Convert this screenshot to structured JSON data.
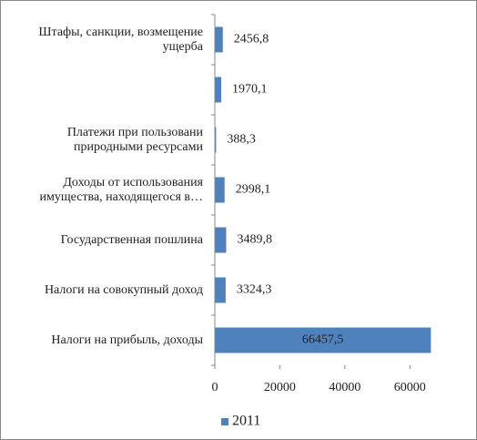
{
  "chart_data": {
    "type": "bar",
    "orientation": "horizontal",
    "categories": [
      "Штафы, санкции, возмещение ущерба",
      null,
      "Платежи при пользовани природными ресурсами",
      "Доходы от использования имущества, находящегося в…",
      "Государственная пошлина",
      "Налоги на совокупный доход",
      "Налоги на прибыль, доходы"
    ],
    "series": [
      {
        "name": "2011",
        "color": "#4f81bd",
        "values": [
          2456.8,
          1970.1,
          388.3,
          2998.1,
          3489.8,
          3324.3,
          66457.5
        ],
        "value_labels": [
          "2456,8",
          "1970,1",
          "388,3",
          "2998,1",
          "3489,8",
          "3324,3",
          "66457,5"
        ]
      }
    ],
    "xlim": [
      0,
      70000
    ],
    "xticks": [
      0,
      20000,
      40000,
      60000
    ],
    "legend": "bottom"
  }
}
